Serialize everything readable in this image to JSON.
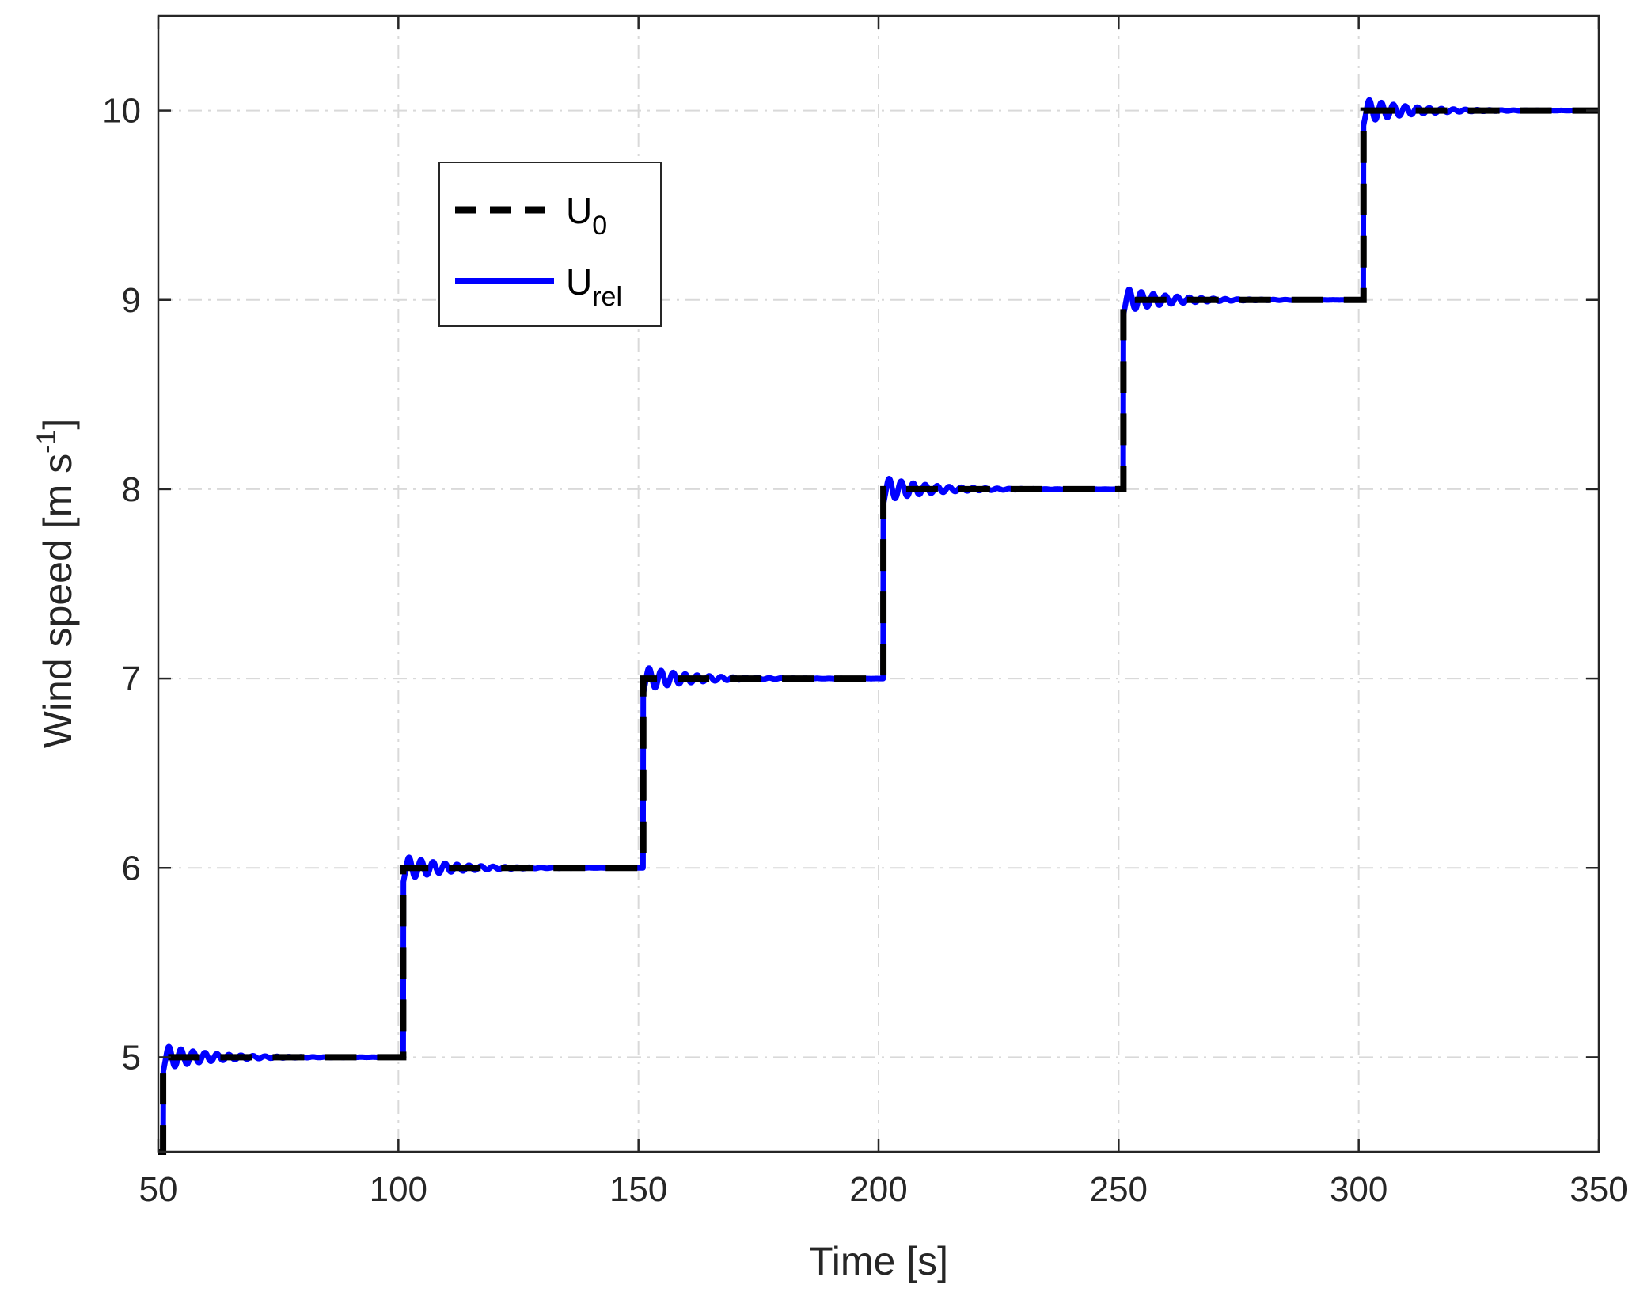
{
  "chart_data": {
    "type": "line",
    "xlabel": "Time [s]",
    "ylabel": {
      "main": "Wind speed [m s",
      "sup": "-1",
      "close": "]"
    },
    "xlim": [
      50,
      350
    ],
    "ylim": [
      4.5,
      10.5
    ],
    "xticks": [
      50,
      100,
      150,
      200,
      250,
      300,
      350
    ],
    "yticks": [
      5,
      6,
      7,
      8,
      9,
      10
    ],
    "grid": true,
    "legend_placement": "top-left",
    "steps": {
      "times": [
        51,
        101,
        151,
        201,
        251,
        301
      ],
      "levels": [
        5,
        6,
        7,
        8,
        9,
        10
      ],
      "initial_level": 4.5
    },
    "series": [
      {
        "name": {
          "main": "U",
          "sub": "0"
        },
        "style": "dashed",
        "color": "#000000",
        "description": "step reference"
      },
      {
        "name": {
          "main": "U",
          "sub": "rel"
        },
        "style": "solid",
        "color": "#0000ff",
        "oscillation": {
          "amplitude": 0.06,
          "period_s": 2.5,
          "decay_s": 9.0,
          "initial_dip": 0.08
        }
      }
    ]
  }
}
